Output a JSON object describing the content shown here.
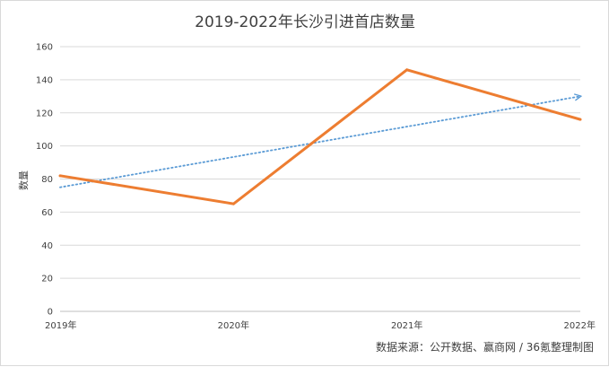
{
  "chart_data": {
    "type": "line",
    "title": "2019-2022年长沙引进首店数量",
    "xlabel": "",
    "ylabel": "数量",
    "categories": [
      "2019年",
      "2020年",
      "2021年",
      "2022年"
    ],
    "series": [
      {
        "values": [
          82,
          65,
          146,
          116
        ],
        "color": "#ED7D31"
      }
    ],
    "trendline": {
      "start": 75,
      "end": 130,
      "color": "#5B9BD5",
      "style": "dotted"
    },
    "ylim": [
      0,
      160
    ],
    "yticks": [
      "0",
      "20",
      "40",
      "60",
      "80",
      "100",
      "120",
      "140",
      "160"
    ],
    "grid": true,
    "legend": "none",
    "source": "数据来源：公开数据、赢商网 / 36氪整理制图"
  }
}
